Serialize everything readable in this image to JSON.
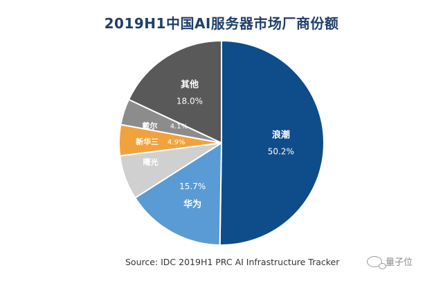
{
  "chart_data": {
    "type": "pie",
    "title": "2019H1中国AI服务器市场厂商份额",
    "categories": [
      "浪潮",
      "华为",
      "曙光",
      "新华三",
      "戴尔",
      "其他"
    ],
    "values": [
      50.2,
      15.7,
      7.0,
      4.9,
      4.1,
      18.0
    ],
    "value_labels": [
      "50.2%",
      "15.7%",
      "",
      "4.9%",
      "4.1%",
      "18.0%"
    ],
    "colors": [
      "#0f4c8a",
      "#5b9bd5",
      "#d0d0d0",
      "#f2a23c",
      "#8c8c8c",
      "#595959"
    ],
    "start_angle_deg": 0,
    "direction": "clockwise",
    "legend": "none"
  },
  "source": "Source: IDC 2019H1 PRC AI Infrastructure Tracker",
  "watermark": "量子位"
}
